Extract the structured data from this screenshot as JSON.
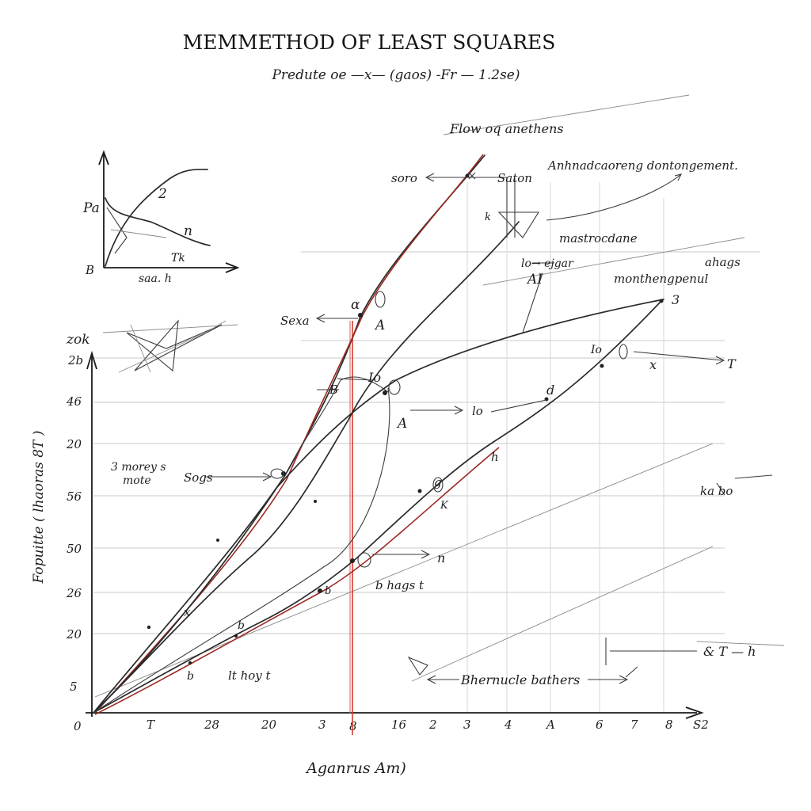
{
  "header": {
    "title": "MEMMETHOD OF LEAST SQUARES",
    "subtitle": "Predute oe   —x—   (gaos) -Fr —  1.2se)"
  },
  "axes": {
    "y_title": "Fopuitte ( lhaoras 8T )",
    "x_title": "Aganrus Aт)",
    "y_top_label": "zok",
    "y_ticks": [
      "2b",
      "46",
      "20",
      "56",
      "50",
      "26",
      "20",
      "5",
      "0"
    ],
    "x_ticks": [
      "T",
      "28",
      "20",
      "3",
      "8",
      "16",
      "2",
      "3",
      "4",
      "A",
      "6",
      "7",
      "8",
      "S2"
    ]
  },
  "inset": {
    "y_label": "Pa",
    "origin_label": "B",
    "x_label": "saa. h",
    "curve_labels": [
      "2",
      "n",
      "Tk"
    ]
  },
  "annotations": {
    "top_note": "Flow oq anethens",
    "note_top_right": "Anhnadcaoreng  dontongement.",
    "soro": "soro",
    "saton": "Saton",
    "k_label": "k",
    "mastro": "mastrocdane",
    "lo_eigar": "lo→ ejgar",
    "ai_label": "AI",
    "ahags": "ahags",
    "month_label": "monthengpenul",
    "three": "3",
    "sexa": "Sexa",
    "a_upper": "A",
    "a_lower": "A",
    "alpha": "α",
    "io_left": "Io",
    "io_right": "Io",
    "lo_mid": "lo",
    "d_label": "d",
    "x_label": "x",
    "t_right": "T",
    "b_tag": "B",
    "h_mid": "h",
    "g_label": "g",
    "k_mid": "K",
    "mored": "3  morey s",
    "mote": "mote",
    "sogs": "Sogs",
    "bho": "ka  bo",
    "n_label": "n",
    "bhags": "b hags  t",
    "bhoy": "lt hoy  t",
    "x_low": "x",
    "b_low": "b",
    "b_lower2": "b",
    "hiernucle": "Bhernucle bathers",
    "t_h": "& T — h",
    "y_small": "b"
  },
  "colors": {
    "ink": "#1e1e1e",
    "grid": "#c9c9cf",
    "red_line": "#d63a2e",
    "red_curve": "#9c2a22"
  }
}
